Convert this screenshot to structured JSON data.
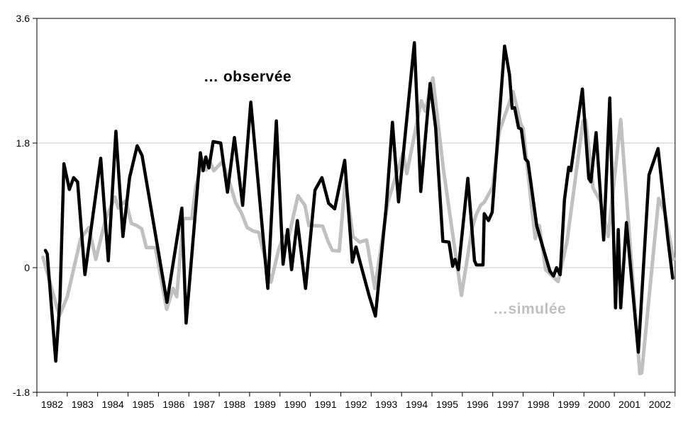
{
  "labels": {
    "observed_series": "… observée",
    "simulated_series": "…simulée"
  },
  "colors": {
    "observed_line": "#000000",
    "simulated_line": "#c0c0c0",
    "gridline": "#c8c8c8",
    "axis": "#000000",
    "background": "#ffffff",
    "simulated_label_text": "#bfbfbf"
  },
  "axes": {
    "y_tick_labels": [
      "3.6",
      "1.8",
      "0",
      "-1.8"
    ],
    "y_tick_values": [
      3.6,
      1.8,
      0,
      -1.8
    ],
    "x_tick_labels": [
      "1982",
      "1983",
      "1984",
      "1985",
      "1986",
      "1987",
      "1988",
      "1989",
      "1990",
      "1991",
      "1992",
      "1993",
      "1994",
      "1995",
      "1996",
      "1997",
      "1998",
      "1999",
      "2000",
      "2001",
      "2002"
    ],
    "y_min": -1.8,
    "y_max": 3.6,
    "x_min": 1982,
    "x_max": 2003,
    "grid_values": [
      1.8,
      0
    ]
  },
  "chart_data": {
    "type": "line",
    "title": "",
    "xlabel": "",
    "ylabel": "",
    "ylim": [
      -1.8,
      3.6
    ],
    "xlim": [
      1982,
      2003
    ],
    "legend_position": "inline-annotations",
    "grid": "horizontal-only",
    "x_units": "year (fractional = month within year)",
    "series": [
      {
        "name": "… observée",
        "color": "#000000",
        "points": [
          [
            1982.28,
            0.25
          ],
          [
            1982.34,
            0.2
          ],
          [
            1982.62,
            -1.35
          ],
          [
            1982.76,
            -0.45
          ],
          [
            1982.89,
            1.5
          ],
          [
            1983.07,
            1.13
          ],
          [
            1983.21,
            1.3
          ],
          [
            1983.34,
            1.24
          ],
          [
            1983.58,
            -0.1
          ],
          [
            1984.1,
            1.58
          ],
          [
            1984.35,
            0.1
          ],
          [
            1984.6,
            1.97
          ],
          [
            1984.83,
            0.45
          ],
          [
            1985.05,
            1.3
          ],
          [
            1985.3,
            1.76
          ],
          [
            1985.46,
            1.62
          ],
          [
            1986.28,
            -0.5
          ],
          [
            1986.77,
            0.86
          ],
          [
            1986.91,
            -0.8
          ],
          [
            1987.38,
            1.66
          ],
          [
            1987.47,
            1.4
          ],
          [
            1987.56,
            1.6
          ],
          [
            1987.66,
            1.44
          ],
          [
            1987.8,
            1.82
          ],
          [
            1988.05,
            1.8
          ],
          [
            1988.27,
            1.09
          ],
          [
            1988.5,
            1.88
          ],
          [
            1988.77,
            0.9
          ],
          [
            1989.04,
            2.39
          ],
          [
            1989.6,
            -0.3
          ],
          [
            1989.88,
            2.12
          ],
          [
            1990.1,
            0.05
          ],
          [
            1990.25,
            0.55
          ],
          [
            1990.38,
            -0.03
          ],
          [
            1990.57,
            0.68
          ],
          [
            1990.84,
            -0.3
          ],
          [
            1991.15,
            1.12
          ],
          [
            1991.38,
            1.3
          ],
          [
            1991.6,
            0.93
          ],
          [
            1991.8,
            0.85
          ],
          [
            1992.13,
            1.55
          ],
          [
            1992.38,
            0.08
          ],
          [
            1992.5,
            0.3
          ],
          [
            1992.93,
            -0.4
          ],
          [
            1993.14,
            -0.7
          ],
          [
            1993.5,
            0.9
          ],
          [
            1993.7,
            2.1
          ],
          [
            1993.9,
            0.95
          ],
          [
            1994.42,
            3.25
          ],
          [
            1994.63,
            1.1
          ],
          [
            1994.94,
            2.66
          ],
          [
            1995.12,
            2.02
          ],
          [
            1995.36,
            0.38
          ],
          [
            1995.56,
            0.37
          ],
          [
            1995.68,
            0.02
          ],
          [
            1995.76,
            0.12
          ],
          [
            1995.87,
            -0.03
          ],
          [
            1996.18,
            1.29
          ],
          [
            1996.4,
            0.1
          ],
          [
            1996.46,
            0.04
          ],
          [
            1996.68,
            0.04
          ],
          [
            1996.72,
            0.78
          ],
          [
            1996.86,
            0.68
          ],
          [
            1996.98,
            0.8
          ],
          [
            1997.39,
            3.2
          ],
          [
            1997.55,
            2.79
          ],
          [
            1997.64,
            2.3
          ],
          [
            1997.72,
            2.31
          ],
          [
            1997.85,
            2.02
          ],
          [
            1997.94,
            2.0
          ],
          [
            1998.07,
            1.57
          ],
          [
            1998.16,
            1.53
          ],
          [
            1998.45,
            0.6
          ],
          [
            1998.68,
            0.25
          ],
          [
            1998.88,
            -0.05
          ],
          [
            1999.0,
            -0.12
          ],
          [
            1999.1,
            0.0
          ],
          [
            1999.22,
            -0.1
          ],
          [
            1999.36,
            0.98
          ],
          [
            1999.5,
            1.45
          ],
          [
            1999.57,
            1.4
          ],
          [
            1999.95,
            2.58
          ],
          [
            2000.16,
            1.29
          ],
          [
            2000.23,
            1.24
          ],
          [
            2000.4,
            1.95
          ],
          [
            2000.65,
            0.4
          ],
          [
            2000.85,
            2.45
          ],
          [
            2001.04,
            -0.58
          ],
          [
            2001.13,
            0.55
          ],
          [
            2001.21,
            -0.58
          ],
          [
            2001.4,
            0.65
          ],
          [
            2001.79,
            -1.22
          ],
          [
            2002.14,
            1.34
          ],
          [
            2002.44,
            1.72
          ],
          [
            2002.76,
            0.42
          ],
          [
            2002.92,
            -0.15
          ]
        ]
      },
      {
        "name": "…simulée",
        "color": "#c0c0c0",
        "points": [
          [
            1982.2,
            0.15
          ],
          [
            1982.74,
            -0.7
          ],
          [
            1983.0,
            -0.42
          ],
          [
            1983.44,
            0.42
          ],
          [
            1983.71,
            0.58
          ],
          [
            1983.94,
            0.12
          ],
          [
            1984.26,
            0.7
          ],
          [
            1984.57,
            1.02
          ],
          [
            1984.68,
            0.86
          ],
          [
            1984.92,
            0.97
          ],
          [
            1985.11,
            0.64
          ],
          [
            1985.28,
            0.61
          ],
          [
            1985.45,
            0.56
          ],
          [
            1985.6,
            0.29
          ],
          [
            1985.9,
            0.29
          ],
          [
            1986.27,
            -0.6
          ],
          [
            1986.48,
            -0.3
          ],
          [
            1986.6,
            -0.42
          ],
          [
            1986.82,
            0.71
          ],
          [
            1987.1,
            0.71
          ],
          [
            1987.23,
            1.17
          ],
          [
            1987.45,
            1.56
          ],
          [
            1987.57,
            1.41
          ],
          [
            1987.69,
            1.54
          ],
          [
            1987.82,
            1.4
          ],
          [
            1988.1,
            1.53
          ],
          [
            1988.3,
            1.29
          ],
          [
            1988.54,
            0.94
          ],
          [
            1988.73,
            0.79
          ],
          [
            1988.92,
            0.58
          ],
          [
            1989.11,
            0.53
          ],
          [
            1989.3,
            0.51
          ],
          [
            1989.7,
            -0.21
          ],
          [
            1989.95,
            0.25
          ],
          [
            1990.1,
            0.45
          ],
          [
            1990.3,
            0.47
          ],
          [
            1990.59,
            1.04
          ],
          [
            1990.82,
            0.9
          ],
          [
            1990.95,
            0.61
          ],
          [
            1991.4,
            0.6
          ],
          [
            1991.58,
            0.38
          ],
          [
            1991.72,
            0.25
          ],
          [
            1991.95,
            0.24
          ],
          [
            1992.15,
            1.27
          ],
          [
            1992.4,
            0.45
          ],
          [
            1992.62,
            0.37
          ],
          [
            1992.85,
            0.4
          ],
          [
            1993.12,
            -0.3
          ],
          [
            1993.55,
            0.95
          ],
          [
            1994.05,
            1.66
          ],
          [
            1994.17,
            1.36
          ],
          [
            1994.65,
            2.41
          ],
          [
            1994.78,
            2.26
          ],
          [
            1995.03,
            2.74
          ],
          [
            1995.37,
            1.44
          ],
          [
            1995.97,
            -0.4
          ],
          [
            1996.31,
            0.54
          ],
          [
            1996.45,
            0.76
          ],
          [
            1996.6,
            0.9
          ],
          [
            1996.73,
            0.95
          ],
          [
            1997.0,
            1.17
          ],
          [
            1997.22,
            1.97
          ],
          [
            1997.67,
            2.54
          ],
          [
            1997.83,
            2.25
          ],
          [
            1997.92,
            2.08
          ],
          [
            1998.0,
            2.01
          ],
          [
            1998.28,
            0.88
          ],
          [
            1998.4,
            0.42
          ],
          [
            1998.53,
            0.61
          ],
          [
            1998.74,
            -0.03
          ],
          [
            1999.15,
            -0.2
          ],
          [
            1999.44,
            0.37
          ],
          [
            1999.97,
            2.12
          ],
          [
            2000.06,
            2.13
          ],
          [
            2000.3,
            1.15
          ],
          [
            2000.55,
            0.95
          ],
          [
            2000.8,
            0.45
          ],
          [
            2001.21,
            2.14
          ],
          [
            2001.84,
            -1.53
          ],
          [
            2001.9,
            -1.52
          ],
          [
            2002.46,
            1.0
          ],
          [
            2002.66,
            0.8
          ],
          [
            2002.95,
            0.12
          ]
        ]
      }
    ]
  }
}
